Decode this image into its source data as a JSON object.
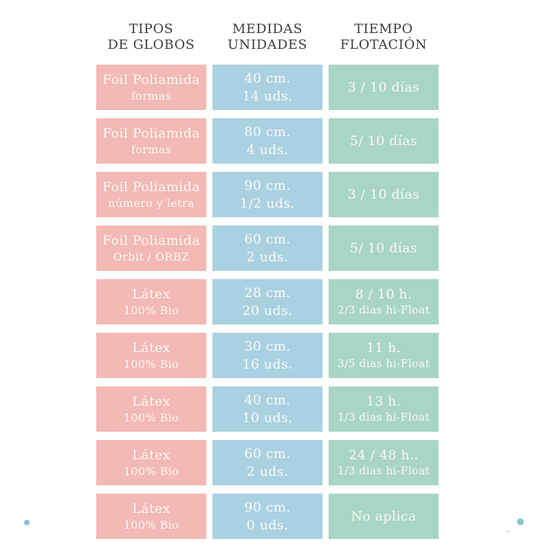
{
  "page": {
    "background": "#ffffff"
  },
  "table": {
    "headers": [
      {
        "line1": "TIPOS",
        "line2": "DE GLOBOS"
      },
      {
        "line1": "MEDIDAS",
        "line2": "UNIDADES"
      },
      {
        "line1": "TIEMPO",
        "line2": "FLOTACIÓN"
      }
    ],
    "colors": {
      "tipos_bg": "#f2b9b5",
      "medidas_bg": "#aad1e1",
      "tiempo_bg": "#a9d5c5",
      "header_text": "#3d3d3d",
      "cell_text": "#fdf8f4"
    },
    "rows": [
      {
        "tipo": [
          "Foil Poliamida",
          "formas"
        ],
        "medida": [
          "40 cm.",
          "14 uds."
        ],
        "tiempo": [
          "3 / 10 días",
          ""
        ]
      },
      {
        "tipo": [
          "Foil Poliamida",
          "formas"
        ],
        "medida": [
          "80 cm.",
          "4 uds."
        ],
        "tiempo": [
          "5/ 10 días",
          ""
        ]
      },
      {
        "tipo": [
          "Foil Poliamida",
          "número y letra"
        ],
        "medida": [
          "90 cm.",
          "1/2 uds."
        ],
        "tiempo": [
          "3 / 10 días",
          ""
        ]
      },
      {
        "tipo": [
          "Foil Poliamida",
          "Orbit / ORBZ"
        ],
        "medida": [
          "60 cm.",
          "2 uds."
        ],
        "tiempo": [
          "5/ 10 días",
          ""
        ]
      },
      {
        "tipo": [
          "Látex",
          "100% Bio"
        ],
        "medida": [
          "28 cm.",
          "20 uds."
        ],
        "tiempo": [
          "8 / 10 h.",
          "2/3 dias hi-Float"
        ]
      },
      {
        "tipo": [
          "Látex",
          "100% Bio"
        ],
        "medida": [
          "30 cm.",
          "16 uds."
        ],
        "tiempo": [
          "11 h.",
          "3/5 dias hi-Float"
        ]
      },
      {
        "tipo": [
          "Látex",
          "100% Bio"
        ],
        "medida": [
          "40 cm.",
          "10 uds."
        ],
        "tiempo": [
          "13 h.",
          "1/3 dias hi-Float"
        ]
      },
      {
        "tipo": [
          "Látex",
          "100% Bio"
        ],
        "medida": [
          "60 cm.",
          "2 uds."
        ],
        "tiempo": [
          "24 / 48 h..",
          "1/3 dias hi-Float"
        ]
      },
      {
        "tipo": [
          "Látex",
          "100% Bio"
        ],
        "medida": [
          "90 cm.",
          "0 uds."
        ],
        "tiempo": [
          "No aplica",
          ""
        ]
      }
    ]
  },
  "decorations": {
    "left_dot_color": "#8cbdd9",
    "right_dot_color": "#87c8c3"
  },
  "chart_data": {
    "type": "table",
    "title": "",
    "columns": [
      "TIPOS DE GLOBOS",
      "MEDIDAS UNIDADES",
      "TIEMPO FLOTACIÓN"
    ],
    "rows": [
      [
        "Foil Poliamida formas",
        "40 cm. 14 uds.",
        "3 / 10 días"
      ],
      [
        "Foil Poliamida formas",
        "80 cm. 4 uds.",
        "5/ 10 días"
      ],
      [
        "Foil Poliamida número y letra",
        "90 cm. 1/2 uds.",
        "3 / 10 días"
      ],
      [
        "Foil Poliamida Orbit / ORBZ",
        "60 cm. 2 uds.",
        "5/ 10 días"
      ],
      [
        "Látex 100% Bio",
        "28 cm. 20 uds.",
        "8 / 10 h. 2/3 dias hi-Float"
      ],
      [
        "Látex 100% Bio",
        "30 cm. 16 uds.",
        "11 h. 3/5 dias hi-Float"
      ],
      [
        "Látex 100% Bio",
        "40 cm. 10 uds.",
        "13 h. 1/3 dias hi-Float"
      ],
      [
        "Látex 100% Bio",
        "60 cm. 2 uds.",
        "24 / 48 h.. 1/3 dias hi-Float"
      ],
      [
        "Látex 100% Bio",
        "90 cm. 0 uds.",
        "No aplica"
      ]
    ]
  }
}
